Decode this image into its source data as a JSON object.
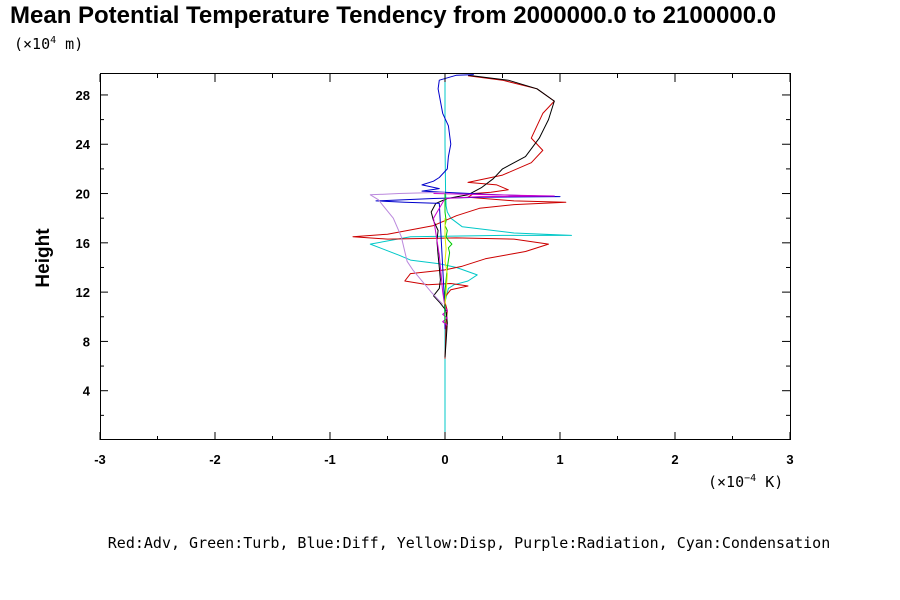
{
  "chart_data": {
    "type": "line",
    "title": "Mean Potential Temperature Tendency from 2000000.0 to 2100000.0",
    "ylabel": "Height",
    "y_unit_prefix": "(×10",
    "y_unit_exp": "4",
    "y_unit_suffix": " m)",
    "x_unit_prefix": "(×10",
    "x_unit_exp": "−4",
    "x_unit_suffix": " K)",
    "xlim": [
      -3,
      3
    ],
    "ylim": [
      0,
      29.7
    ],
    "x_ticks": [
      -3,
      -2,
      -1,
      0,
      1,
      2,
      3
    ],
    "x_tick_labels": [
      "-3",
      "-2",
      "-1",
      "0",
      "1",
      "2",
      "3"
    ],
    "y_ticks": [
      4,
      8,
      12,
      16,
      20,
      24,
      28
    ],
    "y_tick_labels": [
      "4",
      "8",
      "12",
      "16",
      "20",
      "24",
      "28"
    ],
    "grid": false,
    "legend_text": "Red:Adv, Green:Turb, Blue:Diff, Yellow:Disp, Purple:Radiation, Cyan:Condensation",
    "series": [
      {
        "color": "#00c8c8",
        "points": [
          [
            0,
            0
          ],
          [
            0,
            6.5
          ],
          [
            0,
            9
          ],
          [
            -0.005,
            11
          ],
          [
            0.03,
            12.3
          ],
          [
            0.08,
            12.6
          ],
          [
            0.2,
            12.9
          ],
          [
            0.28,
            13.4
          ],
          [
            0.1,
            14
          ],
          [
            -0.05,
            14.3
          ],
          [
            -0.3,
            14.6
          ],
          [
            -0.4,
            15
          ],
          [
            -0.65,
            15.9
          ],
          [
            -0.3,
            16.5
          ],
          [
            0.5,
            16.6
          ],
          [
            1.1,
            16.6
          ],
          [
            0.6,
            16.8
          ],
          [
            0.15,
            17.3
          ],
          [
            0.05,
            18
          ],
          [
            0.02,
            18.5
          ],
          [
            0.01,
            19
          ],
          [
            0.005,
            20
          ],
          [
            0,
            24
          ],
          [
            0,
            29.7
          ]
        ]
      },
      {
        "color": "#cc0000",
        "points": [
          [
            0,
            6.6
          ],
          [
            0.005,
            8
          ],
          [
            0.01,
            9.5
          ],
          [
            0.02,
            10.5
          ],
          [
            -0.01,
            11.5
          ],
          [
            0.05,
            12.2
          ],
          [
            0.2,
            12.5
          ],
          [
            0.05,
            12.7
          ],
          [
            -0.15,
            12.6
          ],
          [
            -0.35,
            12.9
          ],
          [
            -0.3,
            13.5
          ],
          [
            0.0,
            13.8
          ],
          [
            0.15,
            14.1
          ],
          [
            0.35,
            14.7
          ],
          [
            0.7,
            15.3
          ],
          [
            0.9,
            15.9
          ],
          [
            0.6,
            16.3
          ],
          [
            0.1,
            16.4
          ],
          [
            -0.5,
            16.3
          ],
          [
            -0.8,
            16.5
          ],
          [
            -0.5,
            16.7
          ],
          [
            -0.1,
            17.4
          ],
          [
            0.1,
            18.2
          ],
          [
            0.3,
            18.8
          ],
          [
            0.6,
            19.1
          ],
          [
            1.05,
            19.3
          ],
          [
            0.6,
            19.4
          ],
          [
            0.2,
            19.7
          ],
          [
            0.25,
            20
          ],
          [
            0.4,
            20.1
          ],
          [
            0.55,
            20.3
          ],
          [
            0.45,
            20.7
          ],
          [
            0.2,
            20.9
          ],
          [
            0.5,
            21.5
          ],
          [
            0.75,
            22.5
          ],
          [
            0.85,
            23.5
          ],
          [
            0.75,
            24.5
          ],
          [
            0.8,
            25.5
          ],
          [
            0.85,
            26.5
          ],
          [
            0.95,
            27.5
          ],
          [
            0.8,
            28.5
          ],
          [
            0.5,
            29.2
          ],
          [
            0.2,
            29.55
          ]
        ]
      },
      {
        "color": "#000000",
        "points": [
          [
            0,
            6.7
          ],
          [
            0.01,
            8
          ],
          [
            0.02,
            9.5
          ],
          [
            0.01,
            10.5
          ],
          [
            -0.05,
            11.2
          ],
          [
            -0.1,
            11.7
          ],
          [
            -0.05,
            12.3
          ],
          [
            -0.04,
            13
          ],
          [
            -0.05,
            14
          ],
          [
            -0.06,
            15
          ],
          [
            -0.07,
            16.2
          ],
          [
            -0.06,
            17
          ],
          [
            -0.1,
            17.8
          ],
          [
            -0.12,
            18.5
          ],
          [
            -0.08,
            19.2
          ],
          [
            0.02,
            19.6
          ],
          [
            0.2,
            19.9
          ],
          [
            0.32,
            20.5
          ],
          [
            0.42,
            21.2
          ],
          [
            0.5,
            22
          ],
          [
            0.7,
            23
          ],
          [
            0.82,
            24.5
          ],
          [
            0.9,
            26
          ],
          [
            0.95,
            27.5
          ],
          [
            0.8,
            28.5
          ],
          [
            0.55,
            29.2
          ],
          [
            0.2,
            29.6
          ]
        ]
      },
      {
        "color": "#0000cc",
        "points": [
          [
            0,
            9
          ],
          [
            0,
            10.5
          ],
          [
            -0.05,
            19.2
          ],
          [
            -0.35,
            19.3
          ],
          [
            -0.6,
            19.4
          ],
          [
            -0.1,
            19.6
          ],
          [
            0.3,
            19.7
          ],
          [
            1.0,
            19.75
          ],
          [
            0.45,
            19.9
          ],
          [
            0.1,
            20.05
          ],
          [
            -0.2,
            20.2
          ],
          [
            -0.05,
            20.4
          ],
          [
            -0.2,
            20.7
          ],
          [
            -0.1,
            21
          ],
          [
            -0.05,
            21.3
          ],
          [
            0.02,
            22
          ],
          [
            0.03,
            23
          ],
          [
            0.05,
            24
          ],
          [
            0.03,
            25.5
          ],
          [
            -0.02,
            26.5
          ],
          [
            -0.04,
            27.5
          ],
          [
            -0.06,
            28.5
          ],
          [
            -0.05,
            29.2
          ],
          [
            0.1,
            29.6
          ],
          [
            0.25,
            29.65
          ]
        ]
      },
      {
        "color": "#cc00cc",
        "points": [
          [
            0.02,
            9.3
          ],
          [
            -0.02,
            9.6
          ],
          [
            0.02,
            9.9
          ],
          [
            -0.02,
            10.2
          ],
          [
            0.02,
            10.5
          ],
          [
            0,
            10.8
          ],
          [
            -0.02,
            12
          ],
          [
            -0.05,
            15
          ],
          [
            -0.1,
            18
          ],
          [
            0,
            19.6
          ],
          [
            0.3,
            19.75
          ],
          [
            0.95,
            19.8
          ],
          [
            0.4,
            19.9
          ],
          [
            -0.1,
            20
          ]
        ]
      },
      {
        "color": "#bb88dd",
        "points": [
          [
            -0.02,
            11
          ],
          [
            -0.12,
            12
          ],
          [
            -0.28,
            13.8
          ],
          [
            -0.33,
            14.5
          ],
          [
            -0.38,
            16.5
          ],
          [
            -0.45,
            18
          ],
          [
            -0.58,
            19.5
          ],
          [
            -0.65,
            19.9
          ],
          [
            -0.4,
            20
          ],
          [
            -0.2,
            20.05
          ],
          [
            0,
            20.1
          ]
        ]
      },
      {
        "color": "#00cc00",
        "points": [
          [
            0,
            9.5
          ],
          [
            0,
            12
          ],
          [
            0.01,
            13
          ],
          [
            0.02,
            14
          ],
          [
            0.04,
            15.2
          ],
          [
            0.03,
            15.6
          ],
          [
            0.06,
            15.9
          ],
          [
            0.03,
            16.2
          ],
          [
            0.01,
            16.5
          ],
          [
            0.02,
            17
          ],
          [
            0,
            17.4
          ],
          [
            0.01,
            17.8
          ],
          [
            0,
            18.5
          ],
          [
            0,
            20
          ]
        ]
      },
      {
        "color": "#e8e800",
        "points": [
          [
            0,
            11
          ],
          [
            0.01,
            12
          ],
          [
            0.02,
            13.5
          ],
          [
            0,
            14.5
          ],
          [
            0.01,
            15.5
          ],
          [
            0,
            16.5
          ],
          [
            0,
            18
          ]
        ]
      }
    ]
  }
}
